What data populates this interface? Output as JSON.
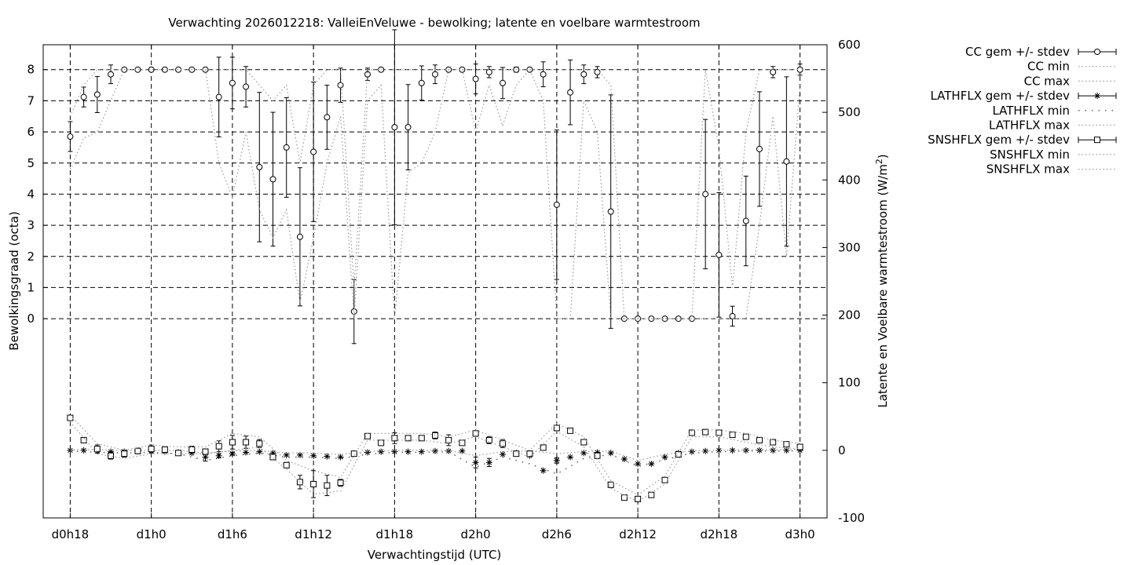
{
  "chart_data": {
    "type": "line",
    "title": "Verwachting 2026012218: ValleiEnVeluwe - bewolking; latente en voelbare warmtestroom",
    "xlabel": "Verwachtingstijd (UTC)",
    "ylabel": "Bewolkingsgraad (octa)",
    "y2label": "Latente en Voelbare warmtestroom (W/m²)",
    "y2label_main": "Latente en Voelbare warmtestroom (W/m",
    "y2label_sup": "2",
    "y2label_end": ")",
    "x_unit": "hour offset from d0h18",
    "xlim": [
      -2,
      56
    ],
    "ylim_left": [
      -6.4,
      8.8
    ],
    "ylim_right": [
      -100,
      600
    ],
    "x_ticks": [
      {
        "x": 0,
        "label": "d0h18"
      },
      {
        "x": 6,
        "label": "d1h0"
      },
      {
        "x": 12,
        "label": "d1h6"
      },
      {
        "x": 18,
        "label": "d1h12"
      },
      {
        "x": 24,
        "label": "d1h18"
      },
      {
        "x": 30,
        "label": "d2h0"
      },
      {
        "x": 36,
        "label": "d2h6"
      },
      {
        "x": 42,
        "label": "d2h12"
      },
      {
        "x": 48,
        "label": "d2h18"
      },
      {
        "x": 54,
        "label": "d3h0"
      }
    ],
    "y_ticks_left": [
      0,
      1,
      2,
      3,
      4,
      5,
      6,
      7,
      8
    ],
    "y_ticks_right": [
      -100,
      0,
      100,
      200,
      300,
      400,
      500,
      600
    ],
    "grid": true,
    "legend_position": "outside-top-right",
    "legend": [
      {
        "label": "CC gem +/- stdev",
        "style": "circle-errorbar"
      },
      {
        "label": "CC min",
        "style": "dotted"
      },
      {
        "label": "CC max",
        "style": "dotted"
      },
      {
        "label": "LATHFLX gem +/- stdev",
        "style": "star-errorbar"
      },
      {
        "label": "LATHFLX min",
        "style": "dotted-sparse"
      },
      {
        "label": "LATHFLX max",
        "style": "dotted"
      },
      {
        "label": "SNSHFLX gem +/- stdev",
        "style": "square-errorbar"
      },
      {
        "label": "SNSHFLX min",
        "style": "dotted"
      },
      {
        "label": "SNSHFLX max",
        "style": "dotted"
      }
    ],
    "series": [
      {
        "name": "CC gem +/- stdev",
        "axis": "left",
        "marker": "circle",
        "x": [
          0,
          1,
          2,
          3,
          4,
          5,
          6,
          7,
          8,
          9,
          10,
          11,
          12,
          13,
          14,
          15,
          16,
          17,
          18,
          19,
          20,
          21,
          22,
          23,
          24,
          25,
          26,
          27,
          28,
          29,
          30,
          31,
          32,
          33,
          34,
          35,
          36,
          37,
          38,
          39,
          40,
          41,
          42,
          43,
          44,
          45,
          46,
          47,
          48,
          49,
          50,
          51,
          52,
          53,
          54
        ],
        "y": [
          5.85,
          7.12,
          7.2,
          7.85,
          8.0,
          8.0,
          8.0,
          8.0,
          8.0,
          8.0,
          8.0,
          7.12,
          7.57,
          7.45,
          4.87,
          4.48,
          5.5,
          2.63,
          5.36,
          6.47,
          7.5,
          0.23,
          7.85,
          8.0,
          6.15,
          6.15,
          7.57,
          7.85,
          8.0,
          8.0,
          7.7,
          7.92,
          7.57,
          8.0,
          8.0,
          7.85,
          3.66,
          7.27,
          7.85,
          7.92,
          3.44,
          0.0,
          0.0,
          0.0,
          0.0,
          0.0,
          0.0,
          4.0,
          2.05,
          0.08,
          3.14,
          5.45,
          7.92,
          5.05,
          8.0
        ],
        "stdev": [
          0.48,
          0.32,
          0.58,
          0.3,
          0,
          0,
          0,
          0,
          0,
          0,
          0,
          1.28,
          0.83,
          0.65,
          2.4,
          2.15,
          1.6,
          2.22,
          2.24,
          1.03,
          0.55,
          1.03,
          0.2,
          0,
          3.13,
          1.37,
          0.55,
          0.3,
          0,
          0,
          0.48,
          0.18,
          0.5,
          0.08,
          0,
          0.4,
          2.4,
          1.04,
          0.3,
          0.18,
          3.75,
          0,
          0,
          0,
          0,
          0,
          0,
          2.4,
          2.0,
          0.32,
          1.44,
          1.84,
          0.18,
          2.72,
          0.18
        ]
      },
      {
        "name": "CC min",
        "axis": "left",
        "x": [
          0,
          1,
          2,
          3,
          4,
          5,
          6,
          7,
          8,
          9,
          10,
          11,
          12,
          13,
          14,
          15,
          16,
          17,
          18,
          19,
          20,
          21,
          22,
          23,
          24,
          25,
          26,
          27,
          28,
          29,
          30,
          31,
          32,
          33,
          34,
          35,
          36,
          37,
          38,
          39,
          40,
          41,
          42,
          43,
          44,
          45,
          46,
          47,
          48,
          49,
          50,
          51,
          52,
          53,
          54
        ],
        "y": [
          4.8,
          5.8,
          6.0,
          7.0,
          8.0,
          8.0,
          8.0,
          8.0,
          8.0,
          8.0,
          8.0,
          5.0,
          3.9,
          6.0,
          3.5,
          2.6,
          3.5,
          0.5,
          2.6,
          5.0,
          6.5,
          0.0,
          7.0,
          7.5,
          0.0,
          4.7,
          5.0,
          6.0,
          8.0,
          8.0,
          6.0,
          7.5,
          6.2,
          7.5,
          8.0,
          7.0,
          0.0,
          0.0,
          7.0,
          6.0,
          0.0,
          0.0,
          0.0,
          0.0,
          0.0,
          0.0,
          0.0,
          0.0,
          0.0,
          0.0,
          0.0,
          3.0,
          6.5,
          2.0,
          7.5
        ]
      },
      {
        "name": "CC max",
        "axis": "left",
        "x": [
          0,
          1,
          2,
          3,
          4,
          5,
          6,
          7,
          8,
          9,
          10,
          11,
          12,
          13,
          14,
          15,
          16,
          17,
          18,
          19,
          20,
          21,
          22,
          23,
          24,
          25,
          26,
          27,
          28,
          29,
          30,
          31,
          32,
          33,
          34,
          35,
          36,
          37,
          38,
          39,
          40,
          41,
          42,
          43,
          44,
          45,
          46,
          47,
          48,
          49,
          50,
          51,
          52,
          53,
          54
        ],
        "y": [
          6.5,
          7.5,
          8.0,
          8.0,
          8.0,
          8.0,
          8.0,
          8.0,
          8.0,
          8.0,
          8.0,
          8.0,
          8.0,
          8.0,
          7.5,
          7.0,
          7.5,
          5.0,
          7.5,
          8.0,
          8.0,
          1.0,
          8.0,
          8.0,
          8.0,
          8.0,
          8.0,
          8.0,
          8.0,
          8.0,
          8.0,
          8.0,
          8.0,
          8.0,
          8.0,
          8.0,
          8.0,
          8.0,
          8.0,
          8.0,
          7.5,
          0.0,
          0.0,
          0.0,
          0.0,
          0.0,
          0.0,
          8.0,
          5.5,
          1.0,
          6.0,
          8.0,
          8.0,
          8.0,
          8.0
        ]
      },
      {
        "name": "LATHFLX gem +/- stdev",
        "axis": "right",
        "marker": "star",
        "x": [
          0,
          1,
          2,
          3,
          4,
          5,
          6,
          7,
          8,
          9,
          10,
          11,
          12,
          13,
          14,
          15,
          16,
          17,
          18,
          19,
          20,
          21,
          22,
          23,
          24,
          25,
          26,
          27,
          28,
          29,
          30,
          31,
          32,
          33,
          34,
          35,
          36,
          37,
          38,
          39,
          40,
          41,
          42,
          43,
          44,
          45,
          46,
          47,
          48,
          49,
          50,
          51,
          52,
          53,
          54
        ],
        "y": [
          0,
          0,
          -1,
          -2,
          -2,
          -1,
          -1,
          -2,
          -3,
          -4,
          -10,
          -8,
          -5,
          -3,
          -2,
          -4,
          -7,
          -7,
          -8,
          -9,
          -10,
          -5,
          -3,
          -2,
          -2,
          -2,
          -2,
          -1,
          -1,
          -1,
          -18,
          -18,
          -6,
          -4,
          -8,
          -30,
          -15,
          -10,
          -4,
          -3,
          -4,
          -13,
          -20,
          -20,
          -10,
          -4,
          -2,
          -1,
          0,
          0,
          0,
          0,
          0,
          0,
          0
        ],
        "stdev": [
          0,
          0,
          0,
          0,
          0,
          0,
          0,
          0,
          0,
          0,
          6,
          3,
          2,
          0,
          0,
          0,
          0,
          0,
          0,
          0,
          0,
          0,
          0,
          0,
          0,
          0,
          0,
          0,
          0,
          0,
          8,
          6,
          0,
          0,
          0,
          0,
          4,
          0,
          0,
          0,
          0,
          0,
          0,
          0,
          0,
          0,
          0,
          0,
          0,
          0,
          0,
          0,
          0,
          0,
          0
        ]
      },
      {
        "name": "LATHFLX min",
        "axis": "right",
        "x": [
          0,
          2,
          4,
          6,
          8,
          10,
          12,
          14,
          16,
          18,
          20,
          22,
          24,
          26,
          28,
          30,
          32,
          34,
          36,
          38,
          40,
          42,
          44,
          46,
          48,
          50,
          52,
          54
        ],
        "y": [
          -1,
          -3,
          -4,
          -3,
          -5,
          -15,
          -8,
          -4,
          -10,
          -10,
          -12,
          -6,
          -3,
          -3,
          -2,
          -25,
          -10,
          -20,
          -35,
          -12,
          -6,
          -24,
          -14,
          -4,
          -2,
          -1,
          -1,
          -1
        ]
      },
      {
        "name": "LATHFLX max",
        "axis": "right",
        "x": [
          0,
          2,
          4,
          6,
          8,
          10,
          12,
          14,
          16,
          18,
          20,
          22,
          24,
          26,
          28,
          30,
          32,
          34,
          36,
          38,
          40,
          42,
          44,
          46,
          48,
          50,
          52,
          54
        ],
        "y": [
          1,
          1,
          0,
          0,
          0,
          -4,
          -1,
          0,
          -4,
          -4,
          -6,
          -2,
          0,
          0,
          0,
          -8,
          -2,
          -1,
          -5,
          -2,
          -1,
          -15,
          -6,
          -1,
          0,
          1,
          1,
          1
        ]
      },
      {
        "name": "SNSHFLX gem +/- stdev",
        "axis": "right",
        "marker": "square",
        "x": [
          0,
          1,
          2,
          3,
          4,
          5,
          6,
          7,
          8,
          9,
          10,
          11,
          12,
          13,
          14,
          15,
          16,
          17,
          18,
          19,
          20,
          21,
          22,
          23,
          24,
          25,
          26,
          27,
          28,
          29,
          30,
          31,
          32,
          33,
          34,
          35,
          36,
          37,
          38,
          39,
          40,
          41,
          42,
          43,
          44,
          45,
          46,
          47,
          48,
          49,
          50,
          51,
          52,
          53,
          54
        ],
        "y": [
          48,
          15,
          2,
          -8,
          -5,
          -1,
          2,
          1,
          -4,
          1,
          -2,
          6,
          12,
          12,
          10,
          -10,
          -22,
          -47,
          -50,
          -52,
          -48,
          -5,
          21,
          11,
          18,
          18,
          18,
          22,
          15,
          11,
          25,
          15,
          10,
          -5,
          -5,
          4,
          33,
          29,
          12,
          -8,
          -51,
          -70,
          -72,
          -66,
          -44,
          -6,
          26,
          27,
          26,
          23,
          20,
          15,
          12,
          9,
          5
        ],
        "stdev": [
          4,
          0,
          6,
          5,
          5,
          4,
          6,
          4,
          0,
          5,
          4,
          8,
          10,
          9,
          6,
          4,
          4,
          10,
          20,
          15,
          5,
          3,
          0,
          3,
          8,
          3,
          3,
          5,
          8,
          3,
          4,
          5,
          6,
          3,
          4,
          0,
          4,
          3,
          3,
          4,
          4,
          0,
          3,
          3,
          3,
          3,
          0,
          3,
          3,
          3,
          3,
          3,
          3,
          3,
          3
        ]
      },
      {
        "name": "SNSHFLX min",
        "axis": "right",
        "x": [
          0,
          2,
          4,
          6,
          8,
          10,
          12,
          14,
          16,
          18,
          20,
          22,
          24,
          26,
          28,
          30,
          32,
          34,
          36,
          38,
          40,
          42,
          44,
          46,
          48,
          50,
          52,
          54
        ],
        "y": [
          42,
          -5,
          -12,
          -5,
          -5,
          -5,
          0,
          5,
          -28,
          -65,
          -60,
          15,
          15,
          15,
          10,
          20,
          5,
          -10,
          28,
          5,
          -56,
          -76,
          -50,
          20,
          20,
          12,
          5,
          2
        ]
      },
      {
        "name": "SNSHFLX max",
        "axis": "right",
        "x": [
          0,
          2,
          4,
          6,
          8,
          10,
          12,
          14,
          16,
          18,
          20,
          22,
          24,
          26,
          28,
          30,
          32,
          34,
          36,
          38,
          40,
          42,
          44,
          46,
          48,
          50,
          52,
          54
        ],
        "y": [
          52,
          10,
          0,
          8,
          5,
          5,
          25,
          20,
          -15,
          -30,
          -40,
          25,
          25,
          25,
          20,
          30,
          15,
          0,
          40,
          20,
          -45,
          -66,
          -38,
          30,
          30,
          25,
          15,
          10
        ]
      }
    ]
  }
}
